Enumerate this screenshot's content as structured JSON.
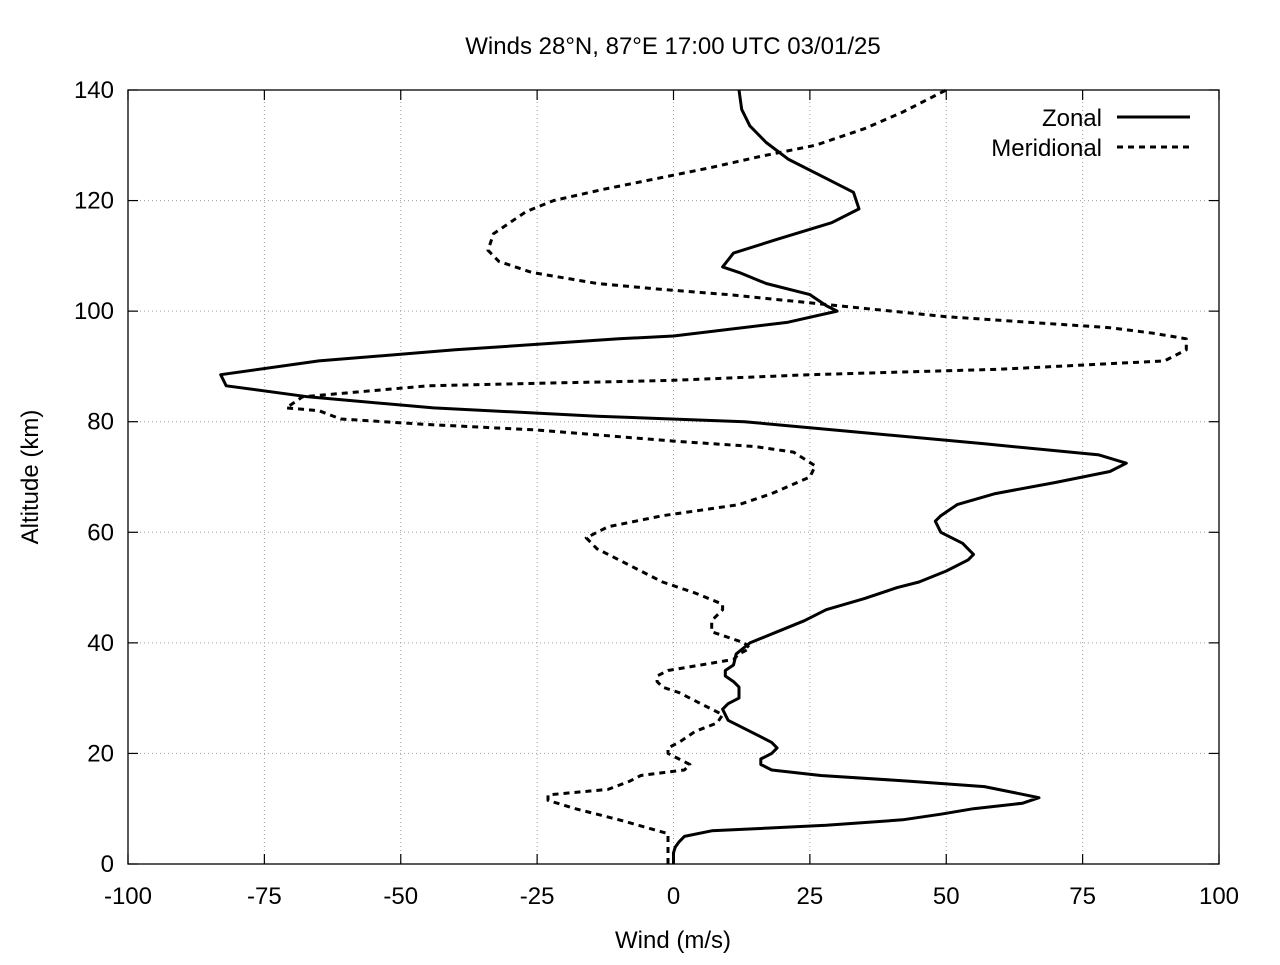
{
  "chart_data": {
    "type": "line",
    "title": "Winds 28°N, 87°E 17:00 UTC 03/01/25",
    "xlabel": "Wind (m/s)",
    "ylabel": "Altitude (km)",
    "xlim": [
      -100,
      100
    ],
    "ylim": [
      0,
      140
    ],
    "x_ticks": [
      -100,
      -75,
      -50,
      -25,
      0,
      25,
      50,
      75,
      100
    ],
    "x_tick_labels": [
      "-100",
      "-75",
      "-50",
      "-25",
      "0",
      "25",
      "50",
      "75",
      "100"
    ],
    "y_ticks": [
      0,
      20,
      40,
      60,
      80,
      100,
      120,
      140
    ],
    "y_tick_labels": [
      "0",
      "20",
      "40",
      "60",
      "80",
      "100",
      "120",
      "140"
    ],
    "grid": true,
    "legend_position": "top-right",
    "series": [
      {
        "name": "Zonal",
        "style": "solid",
        "color": "#000000",
        "points": [
          [
            0,
            0
          ],
          [
            0,
            2
          ],
          [
            0.3,
            3
          ],
          [
            1,
            4
          ],
          [
            2,
            5
          ],
          [
            7,
            6
          ],
          [
            28,
            7
          ],
          [
            42,
            8
          ],
          [
            49,
            9
          ],
          [
            55,
            10
          ],
          [
            64,
            11
          ],
          [
            67,
            12
          ],
          [
            62,
            13
          ],
          [
            57,
            14
          ],
          [
            43,
            15
          ],
          [
            27,
            16
          ],
          [
            18,
            17
          ],
          [
            16,
            18
          ],
          [
            16,
            19
          ],
          [
            18,
            20
          ],
          [
            19,
            21
          ],
          [
            18,
            22
          ],
          [
            16,
            23
          ],
          [
            14,
            24
          ],
          [
            12,
            25
          ],
          [
            10,
            26
          ],
          [
            9.5,
            27
          ],
          [
            9,
            28
          ],
          [
            10,
            29
          ],
          [
            12,
            30
          ],
          [
            12,
            32
          ],
          [
            11,
            33
          ],
          [
            9.5,
            34
          ],
          [
            9.5,
            35
          ],
          [
            11,
            36
          ],
          [
            11.5,
            38
          ],
          [
            14,
            40
          ],
          [
            19,
            42
          ],
          [
            24,
            44
          ],
          [
            28,
            46
          ],
          [
            35,
            48
          ],
          [
            41,
            50
          ],
          [
            45,
            51
          ],
          [
            50,
            53
          ],
          [
            54,
            55
          ],
          [
            55,
            56
          ],
          [
            53,
            58
          ],
          [
            51,
            59
          ],
          [
            49,
            60
          ],
          [
            48,
            62
          ],
          [
            49,
            63
          ],
          [
            52,
            65
          ],
          [
            59,
            67
          ],
          [
            70,
            69
          ],
          [
            80,
            71
          ],
          [
            83,
            72.5
          ],
          [
            78,
            74
          ],
          [
            57,
            76
          ],
          [
            35,
            78
          ],
          [
            13,
            80
          ],
          [
            -14,
            81
          ],
          [
            -44,
            82.5
          ],
          [
            -67,
            84.5
          ],
          [
            -82,
            86.5
          ],
          [
            -83,
            88.5
          ],
          [
            -65,
            91
          ],
          [
            -40,
            93
          ],
          [
            -10,
            95
          ],
          [
            0,
            95.5
          ],
          [
            21,
            98
          ],
          [
            30,
            100
          ],
          [
            28,
            101
          ],
          [
            25,
            103
          ],
          [
            17,
            105
          ],
          [
            12,
            107
          ],
          [
            9,
            108
          ],
          [
            11,
            110.5
          ],
          [
            19,
            113
          ],
          [
            29,
            116
          ],
          [
            34,
            118.5
          ],
          [
            33,
            121.5
          ],
          [
            27,
            124.5
          ],
          [
            21,
            127.5
          ],
          [
            17,
            130.5
          ],
          [
            14,
            133.5
          ],
          [
            12.5,
            136.5
          ],
          [
            12,
            140
          ]
        ]
      },
      {
        "name": "Meridional",
        "style": "dashed",
        "color": "#000000",
        "points": [
          [
            -1,
            0
          ],
          [
            -1,
            4
          ],
          [
            -1,
            5.5
          ],
          [
            -10,
            8
          ],
          [
            -18,
            10
          ],
          [
            -23,
            11.5
          ],
          [
            -23,
            12.5
          ],
          [
            -12,
            13.5
          ],
          [
            -8,
            15
          ],
          [
            -6,
            16
          ],
          [
            2,
            17
          ],
          [
            3,
            18
          ],
          [
            1,
            19
          ],
          [
            -1,
            20
          ],
          [
            -1,
            21
          ],
          [
            1,
            22
          ],
          [
            4,
            24
          ],
          [
            8,
            25.5
          ],
          [
            9,
            27
          ],
          [
            5,
            29
          ],
          [
            1,
            31
          ],
          [
            -2,
            32
          ],
          [
            -3,
            33
          ],
          [
            -3,
            34
          ],
          [
            -1,
            35
          ],
          [
            5,
            36
          ],
          [
            11,
            37
          ],
          [
            12,
            38
          ],
          [
            14,
            39
          ],
          [
            13,
            40
          ],
          [
            7,
            42
          ],
          [
            7,
            44
          ],
          [
            9,
            46
          ],
          [
            9,
            47
          ],
          [
            4,
            49
          ],
          [
            -2,
            51
          ],
          [
            -6,
            53
          ],
          [
            -10,
            55
          ],
          [
            -14,
            57
          ],
          [
            -16,
            59
          ],
          [
            -14,
            60
          ],
          [
            -12,
            61
          ],
          [
            -2,
            63
          ],
          [
            5,
            64
          ],
          [
            12,
            65
          ],
          [
            18,
            67
          ],
          [
            25,
            70
          ],
          [
            26,
            72
          ],
          [
            22,
            74.5
          ],
          [
            15,
            75.5
          ],
          [
            0,
            76.5
          ],
          [
            -25,
            78.5
          ],
          [
            -45,
            79.5
          ],
          [
            -61,
            80.5
          ],
          [
            -65,
            82
          ],
          [
            -71,
            82.5
          ],
          [
            -68,
            84.5
          ],
          [
            -45,
            86.5
          ],
          [
            0,
            87.5
          ],
          [
            25,
            88.5
          ],
          [
            60,
            89.5
          ],
          [
            90,
            91
          ],
          [
            94,
            93
          ],
          [
            94,
            95
          ],
          [
            88,
            96
          ],
          [
            80,
            97
          ],
          [
            50,
            99
          ],
          [
            30,
            101
          ],
          [
            10,
            103
          ],
          [
            -3,
            104
          ],
          [
            -14,
            105
          ],
          [
            -26,
            107
          ],
          [
            -32,
            109
          ],
          [
            -34,
            111
          ],
          [
            -33,
            114
          ],
          [
            -30,
            116
          ],
          [
            -27,
            118
          ],
          [
            -22,
            120
          ],
          [
            -13,
            122
          ],
          [
            -3,
            124
          ],
          [
            7,
            126
          ],
          [
            16,
            128
          ],
          [
            26,
            130
          ],
          [
            35,
            133
          ],
          [
            42,
            136
          ],
          [
            48,
            139
          ],
          [
            50,
            140
          ]
        ]
      }
    ]
  }
}
